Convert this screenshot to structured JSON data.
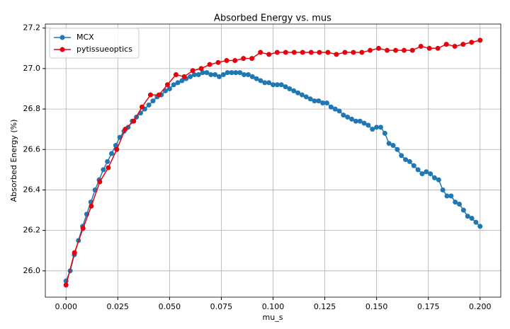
{
  "chart_data": {
    "type": "line",
    "title": "Absorbed Energy vs. mus",
    "xlabel": "mu_s",
    "ylabel": "Absorbed Energy (%)",
    "xlim": [
      -0.01,
      0.21
    ],
    "ylim": [
      25.87,
      27.22
    ],
    "xticks": [
      {
        "value": 0,
        "label": "0.000"
      },
      {
        "value": 0.025,
        "label": "0.025"
      },
      {
        "value": 0.05,
        "label": "0.050"
      },
      {
        "value": 0.075,
        "label": "0.075"
      },
      {
        "value": 0.1,
        "label": "0.100"
      },
      {
        "value": 0.125,
        "label": "0.125"
      },
      {
        "value": 0.15,
        "label": "0.150"
      },
      {
        "value": 0.175,
        "label": "0.175"
      },
      {
        "value": 0.2,
        "label": "0.200"
      }
    ],
    "yticks": [
      {
        "value": 26,
        "label": "26.0"
      },
      26.2,
      26.4,
      26.6,
      26.8,
      {
        "value": 27,
        "label": "27.0"
      },
      27.2
    ],
    "grid": true,
    "legend": "upper left",
    "series": [
      {
        "name": "MCX",
        "color": "#1f77b4",
        "x": [
          0,
          0.002,
          0.004,
          0.006,
          0.008,
          0.01,
          0.012,
          0.014,
          0.016,
          0.018,
          0.02,
          0.022,
          0.024,
          0.026,
          0.028,
          0.03,
          0.032,
          0.034,
          0.036,
          0.038,
          0.04,
          0.042,
          0.044,
          0.046,
          0.048,
          0.05,
          0.052,
          0.054,
          0.056,
          0.058,
          0.06,
          0.062,
          0.064,
          0.066,
          0.068,
          0.07,
          0.072,
          0.074,
          0.076,
          0.078,
          0.08,
          0.082,
          0.084,
          0.086,
          0.088,
          0.09,
          0.092,
          0.094,
          0.096,
          0.098,
          0.1,
          0.102,
          0.104,
          0.106,
          0.108,
          0.11,
          0.112,
          0.114,
          0.116,
          0.118,
          0.12,
          0.122,
          0.124,
          0.126,
          0.128,
          0.13,
          0.132,
          0.134,
          0.136,
          0.138,
          0.14,
          0.142,
          0.144,
          0.146,
          0.148,
          0.15,
          0.152,
          0.154,
          0.156,
          0.158,
          0.16,
          0.162,
          0.164,
          0.166,
          0.168,
          0.17,
          0.172,
          0.174,
          0.176,
          0.178,
          0.18,
          0.182,
          0.184,
          0.186,
          0.188,
          0.19,
          0.192,
          0.194,
          0.196,
          0.198,
          0.2
        ],
        "values": [
          25.95,
          26.0,
          26.08,
          26.15,
          26.22,
          26.28,
          26.34,
          26.4,
          26.45,
          26.5,
          26.54,
          26.58,
          26.62,
          26.66,
          26.69,
          26.71,
          26.74,
          26.76,
          26.78,
          26.8,
          26.82,
          26.84,
          26.86,
          26.87,
          26.89,
          26.9,
          26.92,
          26.93,
          26.94,
          26.95,
          26.96,
          26.97,
          26.97,
          26.98,
          26.98,
          26.97,
          26.97,
          26.96,
          26.97,
          26.98,
          26.98,
          26.98,
          26.98,
          26.97,
          26.97,
          26.96,
          26.95,
          26.94,
          26.93,
          26.93,
          26.92,
          26.92,
          26.92,
          26.91,
          26.9,
          26.89,
          26.88,
          26.87,
          26.86,
          26.85,
          26.84,
          26.84,
          26.83,
          26.83,
          26.81,
          26.8,
          26.79,
          26.77,
          26.76,
          26.75,
          26.74,
          26.74,
          26.73,
          26.72,
          26.7,
          26.71,
          26.71,
          26.68,
          26.63,
          26.62,
          26.6,
          26.57,
          26.55,
          26.54,
          26.52,
          26.5,
          26.48,
          26.49,
          26.48,
          26.46,
          26.45,
          26.4,
          26.37,
          26.37,
          26.34,
          26.33,
          26.3,
          26.27,
          26.26,
          26.24,
          26.22
        ]
      },
      {
        "name": "pytissueoptics",
        "color": "#e8000b",
        "x": [
          0,
          0.0041,
          0.0082,
          0.0122,
          0.0163,
          0.0204,
          0.0245,
          0.0286,
          0.0327,
          0.0367,
          0.0408,
          0.0449,
          0.049,
          0.0531,
          0.0571,
          0.0612,
          0.0653,
          0.0694,
          0.0735,
          0.0776,
          0.0816,
          0.0857,
          0.0898,
          0.0939,
          0.098,
          0.102,
          0.1061,
          0.1102,
          0.1143,
          0.1184,
          0.1224,
          0.1265,
          0.1306,
          0.1347,
          0.1388,
          0.1429,
          0.1469,
          0.151,
          0.1551,
          0.1592,
          0.1633,
          0.1673,
          0.1714,
          0.1755,
          0.1796,
          0.1837,
          0.1878,
          0.1918,
          0.1959,
          0.2
        ],
        "values": [
          25.93,
          26.09,
          26.21,
          26.32,
          26.44,
          26.51,
          26.6,
          26.7,
          26.74,
          26.81,
          26.87,
          26.87,
          26.92,
          26.97,
          26.96,
          26.99,
          27.0,
          27.02,
          27.03,
          27.04,
          27.04,
          27.05,
          27.05,
          27.08,
          27.07,
          27.08,
          27.08,
          27.08,
          27.08,
          27.08,
          27.08,
          27.08,
          27.07,
          27.08,
          27.08,
          27.08,
          27.09,
          27.1,
          27.09,
          27.09,
          27.09,
          27.09,
          27.11,
          27.1,
          27.1,
          27.12,
          27.11,
          27.12,
          27.13,
          27.14
        ]
      }
    ]
  }
}
